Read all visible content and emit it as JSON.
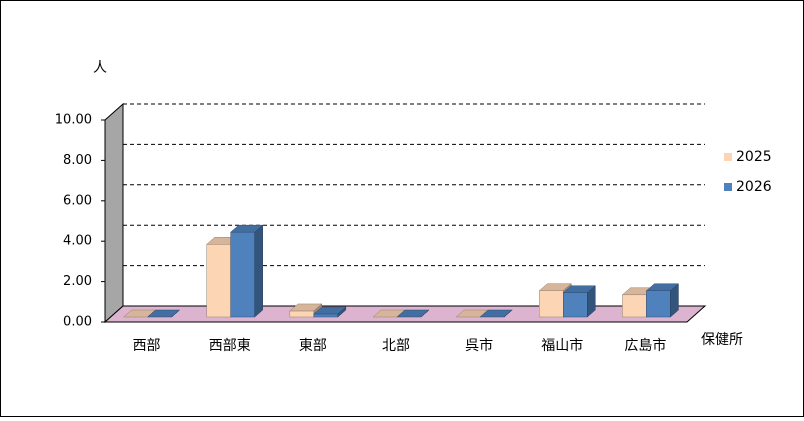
{
  "chart_data": {
    "type": "bar3d",
    "y_label": "人",
    "x_label": "保健所",
    "categories": [
      "西部",
      "西部東",
      "東部",
      "北部",
      "呉市",
      "福山市",
      "広島市"
    ],
    "series": [
      {
        "name": "2025",
        "color": "#fcd5b5",
        "values": [
          0,
          3.6,
          0.3,
          0,
          0,
          1.3,
          1.1
        ]
      },
      {
        "name": "2026",
        "color": "#4f81bd",
        "values": [
          0,
          4.2,
          0.15,
          0,
          0,
          1.2,
          1.3
        ]
      }
    ],
    "ylim": [
      0,
      10
    ],
    "yticks": [
      {
        "value": 0,
        "label": "0.00"
      },
      {
        "value": 2,
        "label": "2.00"
      },
      {
        "value": 4,
        "label": "4.00"
      },
      {
        "value": 6,
        "label": "6.00"
      },
      {
        "value": 8,
        "label": "8.00"
      },
      {
        "value": 10,
        "label": "10.00"
      }
    ],
    "grid": true
  }
}
